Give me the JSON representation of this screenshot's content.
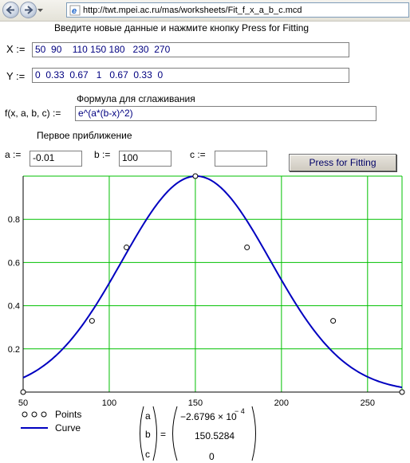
{
  "browser": {
    "url": "http://twt.mpei.ac.ru/mas/worksheets/Fit_f_x_a_b_c.mcd"
  },
  "worksheet": {
    "instruction": "Введите новые данные и нажмите кнопку Press for Fitting",
    "x_label": "X :=",
    "x_value": "50  90    110 150 180   230  270",
    "y_label": "Y :=",
    "y_value": "0  0.33  0.67   1   0.67  0.33  0",
    "formula_heading": "Формула для сглаживания",
    "formula_label": "f(x, a, b, c) :=",
    "formula_value": "e^(a*(b-x)^2)",
    "approx_heading": "Первое приближение",
    "a_label": "a :=",
    "a_value": "-0.01",
    "b_label": "b :=",
    "b_value": "100",
    "c_label": "c :=",
    "c_value": "",
    "fit_button": "Press for Fitting"
  },
  "legend": {
    "points_label": "Points",
    "curve_label": "Curve"
  },
  "result": {
    "names": [
      "a",
      "b",
      "c"
    ],
    "equals": "=",
    "a_mantissa": "−2.6796 × 10",
    "a_exponent": "− 4",
    "b_value": "150.5284",
    "c_value": "0"
  },
  "chart_data": {
    "type": "scatter",
    "title": "",
    "xlabel": "",
    "ylabel": "",
    "xlim": [
      50,
      270
    ],
    "ylim": [
      0,
      1
    ],
    "grid": true,
    "legend_position": "bottom-left",
    "x_ticks": [
      50,
      100,
      150,
      200,
      250
    ],
    "y_ticks": [
      0.2,
      0.4,
      0.6,
      0.8
    ],
    "series": [
      {
        "name": "Points",
        "kind": "markers",
        "x": [
          50,
          90,
          110,
          150,
          180,
          230,
          270
        ],
        "y": [
          0,
          0.33,
          0.67,
          1,
          0.67,
          0.33,
          0
        ]
      },
      {
        "name": "Curve",
        "kind": "line",
        "formula": "exp(a*(b-x)^2)",
        "a": -0.00026796,
        "b": 150.5284,
        "c": 0
      }
    ],
    "colors": {
      "grid": "#00c000",
      "curve": "#0000c0",
      "points": "#000000"
    }
  }
}
